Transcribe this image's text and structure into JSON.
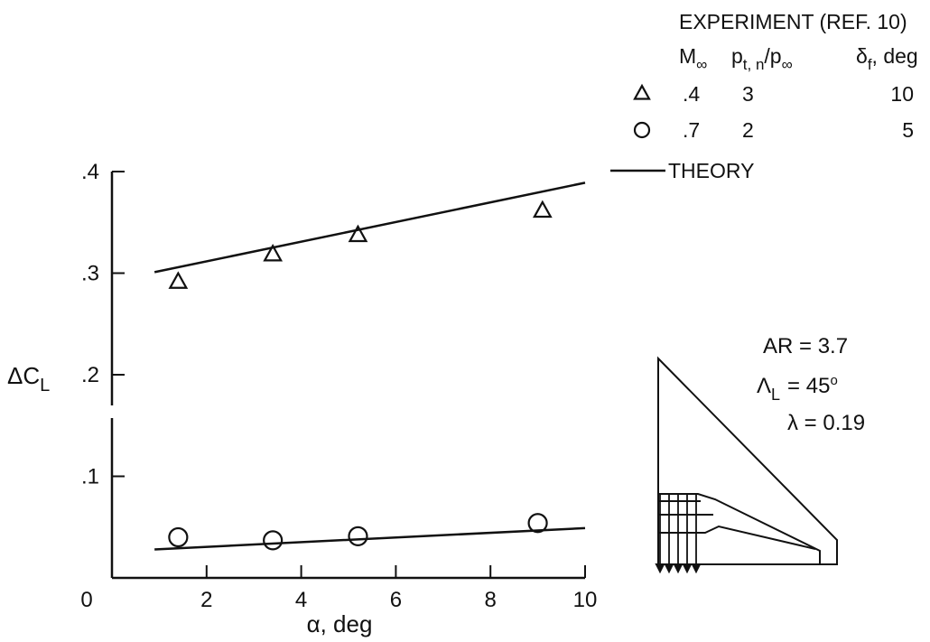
{
  "chart_data": {
    "type": "scatter",
    "title": "",
    "xlabel": "α, deg",
    "ylabel": "ΔC",
    "ylabel_sub": "L",
    "xlim": [
      0,
      10
    ],
    "ylim": [
      0,
      0.4
    ],
    "x_ticks": [
      {
        "value": 0,
        "label": "0"
      },
      {
        "value": 2,
        "label": "2"
      },
      {
        "value": 4,
        "label": "4"
      },
      {
        "value": 6,
        "label": "6"
      },
      {
        "value": 8,
        "label": "8"
      },
      {
        "value": 10,
        "label": "10"
      }
    ],
    "y_ticks": [
      {
        "value": 0.1,
        "label": ".1"
      },
      {
        "value": 0.2,
        "label": ".2"
      },
      {
        "value": 0.3,
        "label": ".3"
      },
      {
        "value": 0.4,
        "label": ".4"
      }
    ],
    "grid": false,
    "legend_position": "top-right",
    "legend": {
      "heading": "EXPERIMENT (REF. 10)",
      "columns": {
        "mach": "M",
        "mach_sub": "∞",
        "pressure_main": "p",
        "pressure_sub": "t, n",
        "pressure_slash": "/p",
        "pressure_sub2": "∞",
        "delta": "δ",
        "delta_sub": "f",
        "delta_unit": ", deg"
      },
      "rows": [
        {
          "symbol": "triangle",
          "mach": ".4",
          "pressure": "3",
          "delta": "10"
        },
        {
          "symbol": "circle",
          "mach": ".7",
          "pressure": "2",
          "delta": "5"
        }
      ],
      "theory_label": "THEORY"
    },
    "series": [
      {
        "symbol": "triangle",
        "points": [
          {
            "x": 1.4,
            "y": 0.291
          },
          {
            "x": 3.4,
            "y": 0.318
          },
          {
            "x": 5.2,
            "y": 0.337
          },
          {
            "x": 9.1,
            "y": 0.361
          }
        ],
        "theory": [
          {
            "x": 0.9,
            "y": 0.301
          },
          {
            "x": 10,
            "y": 0.389
          }
        ]
      },
      {
        "symbol": "circle",
        "points": [
          {
            "x": 1.4,
            "y": 0.04
          },
          {
            "x": 3.4,
            "y": 0.037
          },
          {
            "x": 5.2,
            "y": 0.041
          },
          {
            "x": 9.0,
            "y": 0.054
          }
        ],
        "theory": [
          {
            "x": 0.9,
            "y": 0.028
          },
          {
            "x": 10,
            "y": 0.049
          }
        ]
      }
    ],
    "annotations": {
      "ar": "AR = 3.7",
      "sweep_symbol": "Λ",
      "sweep_sub": "L",
      "sweep_value": "= 45",
      "sweep_unit": "o",
      "taper": "λ = 0.19"
    }
  }
}
